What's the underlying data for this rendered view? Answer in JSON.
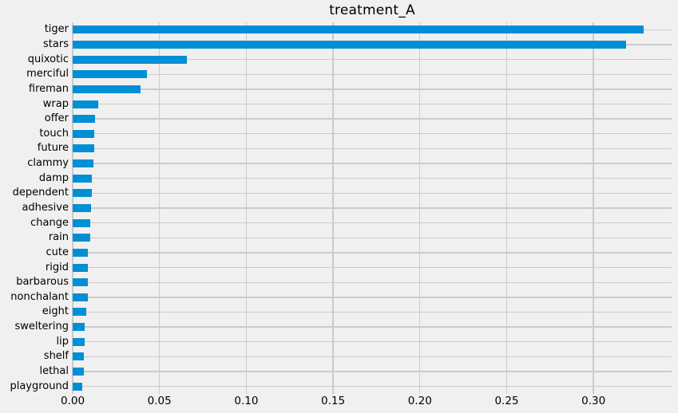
{
  "figure": {
    "title": "treatment_A"
  },
  "colors": {
    "background": "#f0f0f0",
    "grid": "#cbcbcb",
    "bar": "#008fd5",
    "text": "#000000"
  },
  "chart_data": {
    "type": "bar",
    "orientation": "horizontal",
    "title": "treatment_A",
    "xlabel": "",
    "ylabel": "",
    "legend": "none",
    "grid": true,
    "categories": [
      "tiger",
      "stars",
      "quixotic",
      "merciful",
      "fireman",
      "wrap",
      "offer",
      "touch",
      "future",
      "clammy",
      "damp",
      "dependent",
      "adhesive",
      "change",
      "rain",
      "cute",
      "rigid",
      "barbarous",
      "nonchalant",
      "eight",
      "sweltering",
      "lip",
      "shelf",
      "lethal",
      "playground"
    ],
    "values": [
      0.329,
      0.319,
      0.066,
      0.043,
      0.039,
      0.0147,
      0.0128,
      0.0124,
      0.0124,
      0.0119,
      0.0112,
      0.011,
      0.0106,
      0.0103,
      0.01,
      0.0089,
      0.0087,
      0.0086,
      0.0086,
      0.0077,
      0.007,
      0.007,
      0.0066,
      0.0063,
      0.0054
    ],
    "xlim": [
      0,
      0.345
    ],
    "xticks": [
      0,
      0.05,
      0.1,
      0.15,
      0.2,
      0.25,
      0.3
    ],
    "xtick_labels": [
      "0.00",
      "0.05",
      "0.10",
      "0.15",
      "0.20",
      "0.25",
      "0.30"
    ]
  }
}
